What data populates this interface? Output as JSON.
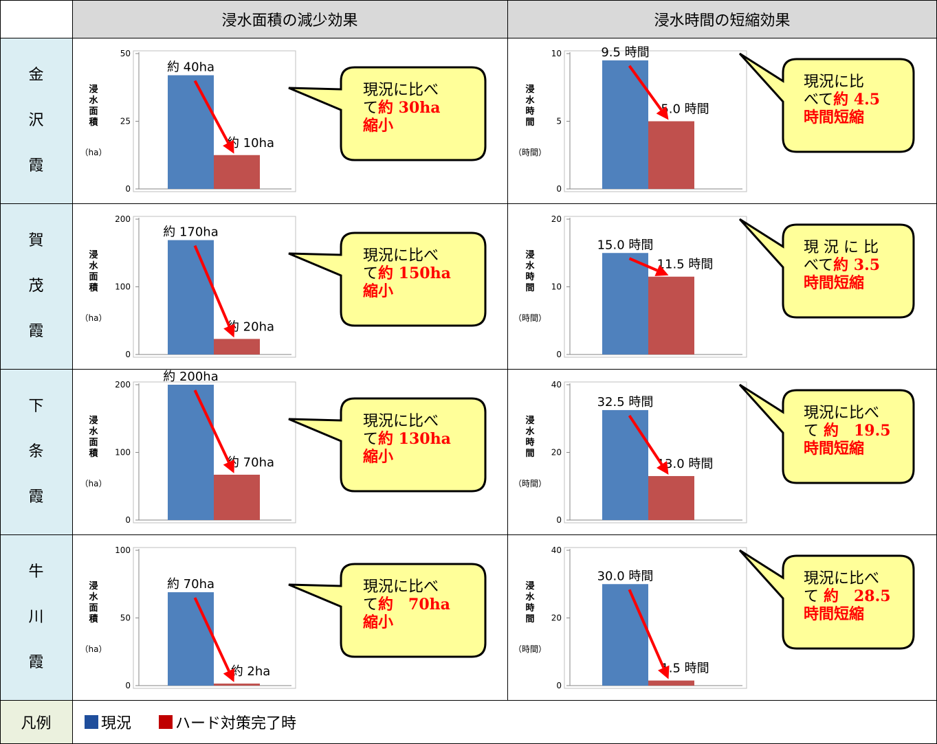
{
  "headers": {
    "area": "浸水面積の減少効果",
    "time": "浸水時間の短縮効果"
  },
  "legend": {
    "title": "凡例",
    "items": [
      {
        "label": "現況",
        "color": "#1f4e9c"
      },
      {
        "label": "ハード対策完了時",
        "color": "#c00000"
      }
    ]
  },
  "colors": {
    "current": "#4f81bd",
    "after": "#c0504d",
    "arrow": "#ff0000",
    "callout_bg": "#ffff99"
  },
  "axis_text": {
    "area_ylabel": "浸水面積",
    "area_unit": "（ha）",
    "time_ylabel": "浸水時間",
    "time_unit": "（時間）"
  },
  "chart_data": [
    {
      "type": "bar",
      "row": "金沢霞",
      "metric": "area",
      "ylim": [
        0,
        50
      ],
      "ticks": [
        "0",
        "25",
        "50"
      ],
      "values": [
        42,
        12.5
      ],
      "labels": [
        "約 40ha",
        "約 10ha"
      ],
      "callout": [
        [
          "現況に比べ",
          ""
        ],
        [
          "て",
          "約 30ha"
        ],
        [
          "",
          "縮小"
        ]
      ]
    },
    {
      "type": "bar",
      "row": "金沢霞",
      "metric": "time",
      "ylim": [
        0,
        10
      ],
      "ticks": [
        "0",
        "5",
        "10"
      ],
      "values": [
        9.5,
        5.0
      ],
      "labels": [
        "9.5 時間",
        "5.0 時間"
      ],
      "callout": [
        [
          "現況に比",
          ""
        ],
        [
          "べて",
          "約 4.5"
        ],
        [
          "",
          "時間短縮"
        ]
      ]
    },
    {
      "type": "bar",
      "row": "賀茂霞",
      "metric": "area",
      "ylim": [
        0,
        200
      ],
      "ticks": [
        "0",
        "100",
        "200"
      ],
      "values": [
        169,
        23
      ],
      "labels": [
        "約 170ha",
        "約 20ha"
      ],
      "callout": [
        [
          "現況に比べ",
          ""
        ],
        [
          "て",
          "約 150ha"
        ],
        [
          "",
          "縮小"
        ]
      ]
    },
    {
      "type": "bar",
      "row": "賀茂霞",
      "metric": "time",
      "ylim": [
        0,
        20
      ],
      "ticks": [
        "0",
        "10",
        "20"
      ],
      "values": [
        15.0,
        11.5
      ],
      "labels": [
        "15.0 時間",
        "11.5 時間"
      ],
      "callout": [
        [
          "現 況 に 比",
          ""
        ],
        [
          "べて",
          "約 3.5"
        ],
        [
          "",
          "時間短縮"
        ]
      ]
    },
    {
      "type": "bar",
      "row": "下条霞",
      "metric": "area",
      "ylim": [
        0,
        200
      ],
      "ticks": [
        "0",
        "100",
        "200"
      ],
      "values": [
        200,
        67
      ],
      "labels": [
        "約 200ha",
        "約 70ha"
      ],
      "callout": [
        [
          "現況に比べ",
          ""
        ],
        [
          "て",
          "約 130ha"
        ],
        [
          "",
          "縮小"
        ]
      ]
    },
    {
      "type": "bar",
      "row": "下条霞",
      "metric": "time",
      "ylim": [
        0,
        40
      ],
      "ticks": [
        "0",
        "20",
        "40"
      ],
      "values": [
        32.5,
        13.0
      ],
      "labels": [
        "32.5 時間",
        "13.0 時間"
      ],
      "callout": [
        [
          "現況に比べ",
          ""
        ],
        [
          "て ",
          "約　19.5"
        ],
        [
          "",
          "時間短縮"
        ]
      ]
    },
    {
      "type": "bar",
      "row": "牛川霞",
      "metric": "area",
      "ylim": [
        0,
        100
      ],
      "ticks": [
        "0",
        "50",
        "100"
      ],
      "values": [
        69,
        1.5
      ],
      "labels": [
        "約 70ha",
        "約 2ha"
      ],
      "callout": [
        [
          "現況に比べ",
          ""
        ],
        [
          "て",
          "約　70ha"
        ],
        [
          "",
          "縮小"
        ]
      ]
    },
    {
      "type": "bar",
      "row": "牛川霞",
      "metric": "time",
      "ylim": [
        0,
        40
      ],
      "ticks": [
        "0",
        "20",
        "40"
      ],
      "values": [
        30.0,
        1.5
      ],
      "labels": [
        "30.0 時間",
        "1.5 時間"
      ],
      "callout": [
        [
          "現況に比べ",
          ""
        ],
        [
          "て ",
          "約　28.5"
        ],
        [
          "",
          "時間短縮"
        ]
      ]
    }
  ]
}
